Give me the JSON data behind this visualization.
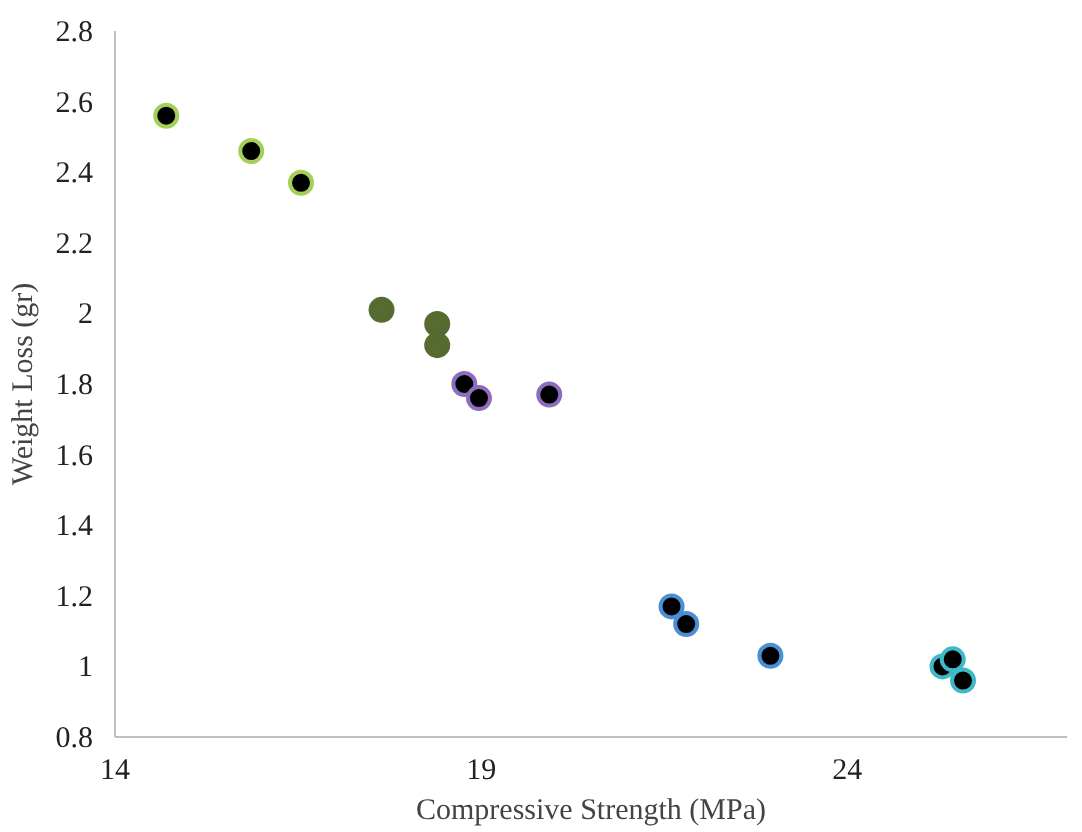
{
  "chart_data": {
    "type": "scatter",
    "xlabel": "Compressive Strength (MPa)",
    "ylabel": "Weight Loss (gr)",
    "xlim": [
      14,
      27
    ],
    "xticks": [
      14,
      19,
      24
    ],
    "ylim": [
      0.8,
      2.8
    ],
    "yticks": [
      0.8,
      1,
      1.2,
      1.4,
      1.6,
      1.8,
      2,
      2.2,
      2.4,
      2.6,
      2.8
    ],
    "marker": "circle",
    "series": [
      {
        "color": "#a4d05a",
        "colors": [
          "#000000",
          "#000000",
          "#000000"
        ],
        "x": [
          14.7,
          15.86,
          16.54
        ],
        "values": [
          2.56,
          2.46,
          2.37
        ]
      },
      {
        "color": "#556b2f",
        "colors": [
          "#556b2f",
          "#556b2f",
          "#556b2f"
        ],
        "x": [
          17.64,
          18.4,
          18.4
        ],
        "values": [
          2.01,
          1.97,
          1.91
        ]
      },
      {
        "color": "#8e6cbf",
        "colors": [
          "#000000",
          "#000000",
          "#000000"
        ],
        "x": [
          18.77,
          18.97,
          19.93
        ],
        "values": [
          1.8,
          1.76,
          1.77
        ]
      },
      {
        "color": "#4a8fd4",
        "colors": [
          "#000000",
          "#000000",
          "#000000"
        ],
        "x": [
          21.6,
          21.8,
          22.95
        ],
        "values": [
          1.17,
          1.12,
          1.03
        ]
      },
      {
        "color": "#3fb8c8",
        "colors": [
          "#000000",
          "#000000",
          "#000000"
        ],
        "x": [
          25.3,
          25.44,
          25.58
        ],
        "values": [
          1.0,
          1.02,
          0.96
        ]
      }
    ]
  }
}
